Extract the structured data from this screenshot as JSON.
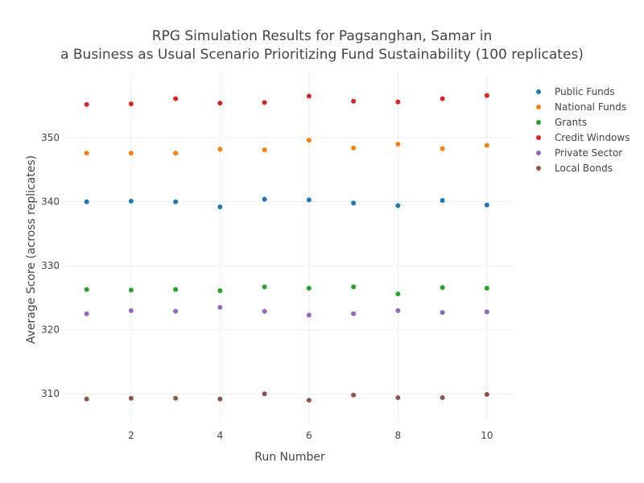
{
  "chart_data": {
    "type": "scatter",
    "title_lines": [
      "RPG Simulation Results for Pagsanghan, Samar in",
      "a Business as Usual Scenario Prioritizing Fund Sustainability (100 replicates)"
    ],
    "xlabel": "Run Number",
    "ylabel": "Average Score (across replicates)",
    "xlim": [
      0.5,
      10.6
    ],
    "ylim": [
      305.5,
      360.2
    ],
    "x_ticks": [
      2,
      4,
      6,
      8,
      10
    ],
    "y_ticks": [
      310,
      320,
      330,
      340,
      350
    ],
    "grid": true,
    "legend_position": "top-right",
    "x": [
      1,
      2,
      3,
      4,
      5,
      6,
      7,
      8,
      9,
      10
    ],
    "series": [
      {
        "name": "Public Funds",
        "color": "#1f77b4",
        "values": [
          340.0,
          340.1,
          340.0,
          339.2,
          340.4,
          340.3,
          339.8,
          339.4,
          340.2,
          339.5
        ]
      },
      {
        "name": "National Funds",
        "color": "#ff7f0e",
        "values": [
          347.6,
          347.6,
          347.6,
          348.2,
          348.1,
          349.6,
          348.4,
          349.0,
          348.3,
          348.8
        ]
      },
      {
        "name": "Grants",
        "color": "#2ca02c",
        "values": [
          326.3,
          326.2,
          326.3,
          326.1,
          326.7,
          326.5,
          326.7,
          325.6,
          326.6,
          326.5
        ]
      },
      {
        "name": "Credit Windows",
        "color": "#d62728",
        "values": [
          355.2,
          355.3,
          356.1,
          355.4,
          355.5,
          356.5,
          355.7,
          355.6,
          356.1,
          356.6
        ]
      },
      {
        "name": "Private Sector",
        "color": "#9467bd",
        "values": [
          322.5,
          323.0,
          322.9,
          323.5,
          322.9,
          322.3,
          322.5,
          323.0,
          322.7,
          322.8
        ]
      },
      {
        "name": "Local Bonds",
        "color": "#8c564b",
        "values": [
          309.2,
          309.3,
          309.3,
          309.2,
          310.0,
          309.0,
          309.8,
          309.4,
          309.4,
          309.9
        ]
      }
    ]
  }
}
